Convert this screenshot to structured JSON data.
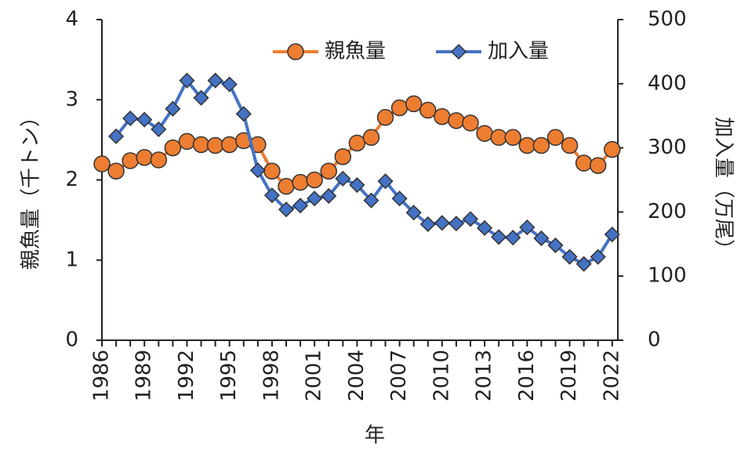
{
  "chart_data": {
    "type": "line",
    "x": [
      1986,
      1987,
      1988,
      1989,
      1990,
      1991,
      1992,
      1993,
      1994,
      1995,
      1996,
      1997,
      1998,
      1999,
      2000,
      2001,
      2002,
      2003,
      2004,
      2005,
      2006,
      2007,
      2008,
      2009,
      2010,
      2011,
      2012,
      2013,
      2014,
      2015,
      2016,
      2017,
      2018,
      2019,
      2020,
      2021,
      2022
    ],
    "xlim": [
      1986,
      2022.4
    ],
    "xticks": [
      1986,
      1989,
      1992,
      1995,
      1998,
      2001,
      2004,
      2007,
      2010,
      2013,
      2016,
      2019,
      2022
    ],
    "x_label": "年",
    "y_label": "親魚量（千トン）",
    "y2_label": "加入量（万尾）",
    "ylim": [
      0,
      4
    ],
    "yticks": [
      0,
      1,
      2,
      3,
      4
    ],
    "y2lim": [
      0,
      500
    ],
    "y2ticks": [
      0,
      100,
      200,
      300,
      400,
      500
    ],
    "grid": false,
    "legend": "top",
    "series": [
      {
        "name": "親魚量",
        "color": "#ed7d31",
        "marker": "circle",
        "values": [
          2.2,
          2.11,
          2.24,
          2.28,
          2.25,
          2.4,
          2.48,
          2.44,
          2.43,
          2.44,
          2.49,
          2.44,
          2.11,
          1.92,
          1.97,
          2.0,
          2.11,
          2.29,
          2.46,
          2.53,
          2.78,
          2.9,
          2.95,
          2.87,
          2.79,
          2.74,
          2.71,
          2.58,
          2.53,
          2.53,
          2.43,
          2.43,
          2.53,
          2.43,
          2.21,
          2.18,
          2.38
        ]
      },
      {
        "name": "加入量",
        "color": "#4472c4",
        "marker": "diamond",
        "axis": "y2",
        "values": [
          null,
          318,
          346,
          344,
          329,
          361,
          405,
          378,
          405,
          399,
          353,
          265,
          226,
          204,
          210,
          221,
          225,
          252,
          242,
          218,
          248,
          221,
          199,
          181,
          183,
          182,
          189,
          175,
          161,
          160,
          176,
          159,
          148,
          130,
          119,
          130,
          165
        ]
      }
    ]
  }
}
